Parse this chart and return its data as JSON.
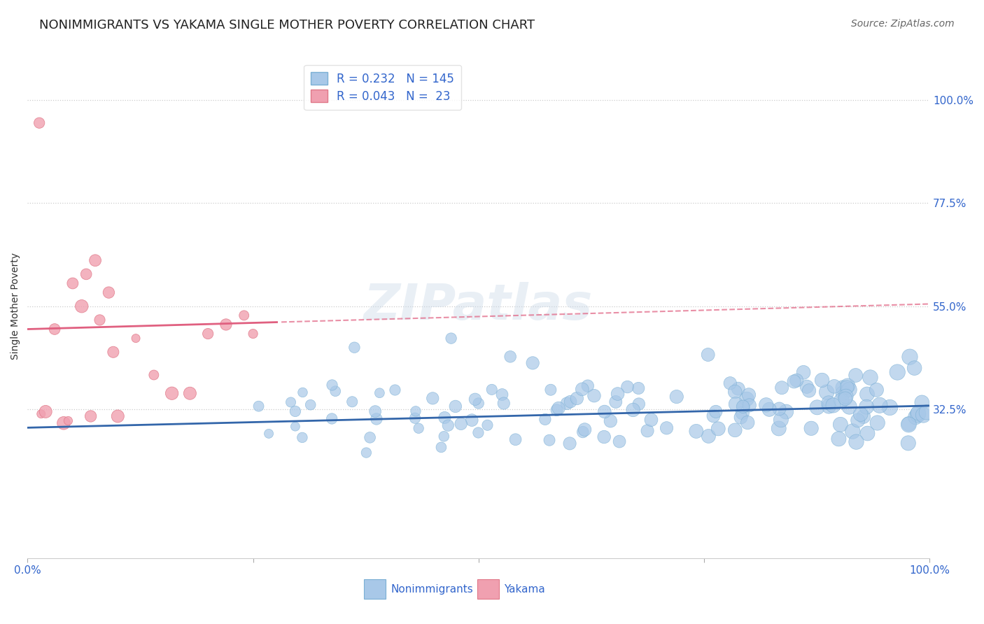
{
  "title": "NONIMMIGRANTS VS YAKAMA SINGLE MOTHER POVERTY CORRELATION CHART",
  "source_text": "Source: ZipAtlas.com",
  "ylabel": "Single Mother Poverty",
  "watermark": "ZIPatlas",
  "y_ticks": [
    0.325,
    0.55,
    0.775,
    1.0
  ],
  "y_tick_labels": [
    "32.5%",
    "55.0%",
    "77.5%",
    "100.0%"
  ],
  "xlim": [
    0.0,
    1.0
  ],
  "ylim": [
    0.0,
    1.1
  ],
  "blue_color": "#a8c8e8",
  "blue_edge_color": "#7aafd4",
  "pink_color": "#f0a0b0",
  "pink_edge_color": "#e07888",
  "trendline_blue": "#3366aa",
  "trendline_pink": "#e06080",
  "R_blue": 0.232,
  "N_blue": 145,
  "R_pink": 0.043,
  "N_pink": 23,
  "legend_label_nonimmigrants": "Nonimmigrants",
  "legend_label_yakama": "Yakama",
  "title_fontsize": 13,
  "axis_label_fontsize": 10,
  "tick_label_fontsize": 11,
  "legend_fontsize": 12,
  "source_fontsize": 10,
  "watermark_fontsize": 52,
  "watermark_color": "#c8d8e8",
  "watermark_alpha": 0.4,
  "background_color": "#ffffff",
  "grid_color": "#e0e0e0",
  "seed": 42,
  "blue_intercept": 0.285,
  "blue_slope": 0.048,
  "pink_intercept": 0.5,
  "pink_slope": 0.055
}
